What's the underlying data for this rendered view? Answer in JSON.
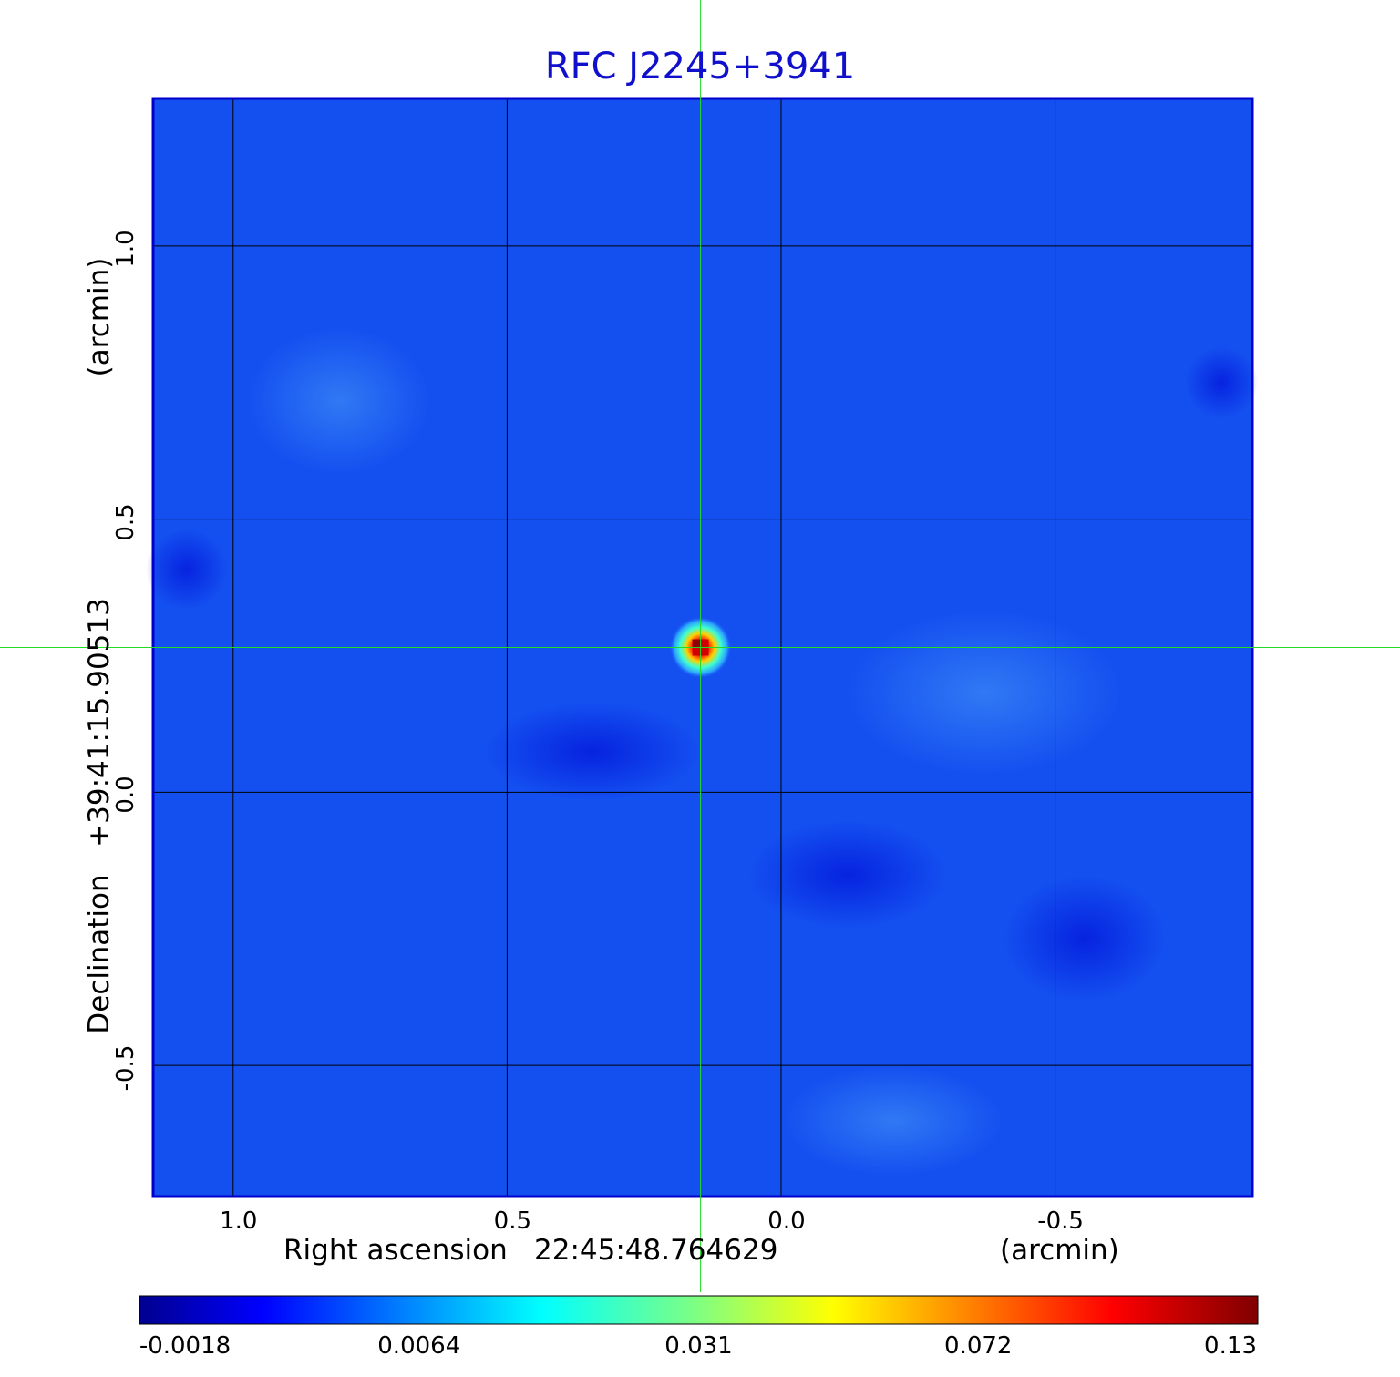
{
  "title": "RFC J2245+3941",
  "x_axis": {
    "label_name": "Right ascension",
    "label_value": "22:45:48.764629",
    "unit": "(arcmin)",
    "ticks": [
      "1.0",
      "0.5",
      "0.0",
      "-0.5"
    ]
  },
  "y_axis": {
    "label_name": "Declination",
    "label_value": "+39:41:15.90513",
    "unit": "(arcmin)",
    "ticks": [
      "1.0",
      "0.5",
      "0.0",
      "-0.5"
    ]
  },
  "colorbar": {
    "ticks": [
      "-0.0018",
      "0.0064",
      "0.031",
      "0.072",
      "0.13"
    ]
  },
  "colors": {
    "title": "#1010cc",
    "frame": "#0000cc",
    "grid": "#000000",
    "crosshair": "#22dd22",
    "background_map": "#1450f0"
  },
  "chart_data": {
    "type": "heatmap",
    "title": "RFC J2245+3941",
    "xlabel": "Right ascension  22:45:48.764629",
    "ylabel": "Declination  +39:41:15.90513",
    "x_unit": "arcmin",
    "y_unit": "arcmin",
    "x_ticks": [
      1.0,
      0.5,
      0.0,
      -0.5
    ],
    "y_ticks": [
      1.0,
      0.5,
      0.0,
      -0.5
    ],
    "xlim": [
      1.146,
      -0.86
    ],
    "ylim": [
      -0.74,
      1.27
    ],
    "grid": true,
    "colormap": "jet",
    "colorbar_ticks": [
      -0.0018,
      0.0064,
      0.031,
      0.072,
      0.13
    ],
    "source": {
      "x": 0.147,
      "y": 0.265,
      "peak": 0.13
    },
    "crosshair": {
      "x": 0.147,
      "y": 0.265
    }
  }
}
